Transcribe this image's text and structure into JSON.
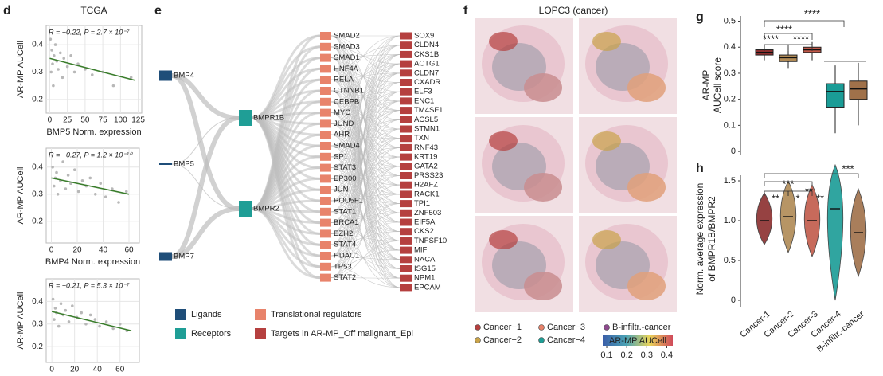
{
  "chart_data": [
    {
      "type": "scatter",
      "panel": "d",
      "title": "TCGA",
      "annotation": "R = −0.22, P = 2.7 × 10⁻⁷",
      "xlabel": "BMP5 Norm. expression",
      "ylabel": "AR-MP AUCell",
      "xlim": [
        -5,
        130
      ],
      "ylim": [
        0.15,
        0.47
      ],
      "xticks": [
        0,
        25,
        50,
        75,
        100,
        125
      ],
      "yticks": [
        0.2,
        0.3,
        0.4
      ],
      "grid": true,
      "color": "#b8b8b8",
      "fit_color": "#3a7d2c",
      "points": {
        "x": [
          1,
          2,
          3,
          4,
          5,
          6,
          8,
          10,
          12,
          15,
          18,
          20,
          25,
          30,
          35,
          40,
          50,
          60,
          75,
          90,
          115
        ],
        "y": [
          0.42,
          0.3,
          0.38,
          0.33,
          0.25,
          0.36,
          0.4,
          0.34,
          0.31,
          0.37,
          0.28,
          0.35,
          0.32,
          0.36,
          0.3,
          0.33,
          0.31,
          0.29,
          0.3,
          0.25,
          0.28
        ]
      },
      "fit": {
        "x": [
          0,
          120
        ],
        "y": [
          0.35,
          0.27
        ]
      }
    },
    {
      "type": "scatter",
      "annotation": "R = −0.27, P = 1.2 × 10⁻¹⁰",
      "xlabel": "BMP4 Norm. expression",
      "ylabel": "AR-MP AUCell",
      "xlim": [
        -4,
        68
      ],
      "ylim": [
        0.12,
        0.47
      ],
      "xticks": [
        0,
        20,
        40,
        60
      ],
      "yticks": [
        0.2,
        0.3,
        0.4
      ],
      "grid": true,
      "color": "#b8b8b8",
      "fit_color": "#3a7d2c",
      "points": {
        "x": [
          1,
          2,
          3,
          4,
          5,
          7,
          9,
          11,
          13,
          15,
          18,
          21,
          24,
          27,
          30,
          34,
          38,
          42,
          47,
          52,
          58
        ],
        "y": [
          0.4,
          0.33,
          0.36,
          0.38,
          0.3,
          0.35,
          0.42,
          0.32,
          0.37,
          0.34,
          0.39,
          0.31,
          0.35,
          0.33,
          0.36,
          0.3,
          0.34,
          0.29,
          0.32,
          0.27,
          0.31
        ]
      },
      "fit": {
        "x": [
          0,
          60
        ],
        "y": [
          0.36,
          0.3
        ]
      }
    },
    {
      "type": "scatter",
      "annotation": "R = −0.21, P = 5.3 × 10⁻⁷",
      "ylabel": "AR-MP AUCell",
      "xlim": [
        -5,
        77
      ],
      "ylim": [
        0.13,
        0.5
      ],
      "xticks": [
        0,
        20,
        40,
        60
      ],
      "yticks": [
        0.2,
        0.3,
        0.4
      ],
      "grid": true,
      "color": "#b8b8b8",
      "fit_color": "#3a7d2c",
      "points": {
        "x": [
          1,
          2,
          3,
          4,
          6,
          8,
          10,
          12,
          15,
          18,
          22,
          26,
          30,
          34,
          38,
          42,
          48,
          54,
          60,
          66
        ],
        "y": [
          0.41,
          0.32,
          0.37,
          0.35,
          0.29,
          0.39,
          0.34,
          0.36,
          0.31,
          0.38,
          0.33,
          0.35,
          0.3,
          0.34,
          0.32,
          0.29,
          0.31,
          0.28,
          0.3,
          0.27
        ]
      },
      "fit": {
        "x": [
          0,
          70
        ],
        "y": [
          0.355,
          0.27
        ]
      }
    },
    {
      "type": "sankey",
      "panel": "e",
      "groups": [
        {
          "name": "Ligands",
          "color": "#1f4e79",
          "nodes": [
            "BMP4",
            "BMP5",
            "BMP7"
          ]
        },
        {
          "name": "Receptors",
          "color": "#1f9e96",
          "nodes": [
            "BMPR1B",
            "BMPR2"
          ]
        },
        {
          "name": "Translational regulators",
          "color": "#e8836b",
          "nodes": [
            "SMAD2",
            "SMAD3",
            "SMAD1",
            "HNF4A",
            "RELA",
            "CTNNB1",
            "CEBPB",
            "MYC",
            "JUND",
            "AHR",
            "SMAD4",
            "SP1",
            "STAT3",
            "EP300",
            "JUN",
            "POU5F1",
            "STAT1",
            "BRCA1",
            "EZH2",
            "STAT4",
            "HDAC1",
            "TP53",
            "STAT2"
          ]
        },
        {
          "name": "Targets in AR-MP_Off malignant_Epi",
          "color": "#b5403f",
          "nodes": [
            "SOX9",
            "CLDN4",
            "CKS1B",
            "ACTG1",
            "CLDN7",
            "CXADR",
            "ELF3",
            "ENC1",
            "TM4SF1",
            "ACSL5",
            "STMN1",
            "TXN",
            "RNF43",
            "KRT19",
            "GATA2",
            "PRSS23",
            "H2AFZ",
            "RACK1",
            "TPI1",
            "ZNF503",
            "EIF5A",
            "CKS2",
            "TNFSF10",
            "MIF",
            "NACA",
            "ISG15",
            "NPM1",
            "EPCAM"
          ]
        }
      ]
    },
    {
      "type": "spatial",
      "panel": "f",
      "title": "LOPC3 (cancer)",
      "legend": [
        {
          "name": "Cancer−1",
          "color": "#b5403f"
        },
        {
          "name": "Cancer−3",
          "color": "#e8836b"
        },
        {
          "name": "B-infiltr.-cancer",
          "color": "#8e4a8e"
        },
        {
          "name": "Cancer−2",
          "color": "#c9a34a"
        },
        {
          "name": "Cancer−4",
          "color": "#1f9e96"
        }
      ],
      "colorbar": {
        "label": "AR-MP AUCell",
        "xlim": [
          0.08,
          0.43
        ],
        "xticks": [
          0.1,
          0.2,
          0.3,
          0.4
        ],
        "colors": [
          "#3b5ea8",
          "#4aa3b5",
          "#e8d35a",
          "#d04a5a"
        ]
      }
    },
    {
      "type": "box",
      "panel": "g",
      "ylabel": [
        "AR-MP",
        "AUCell score"
      ],
      "ylim": [
        -0.015,
        0.52
      ],
      "yticks": [
        0,
        0.1,
        0.2,
        0.3,
        0.4,
        0.5
      ],
      "boxes": [
        {
          "color": "#8b2e2e",
          "min": 0.35,
          "q1": 0.37,
          "median": 0.38,
          "q3": 0.39,
          "max": 0.41
        },
        {
          "color": "#b08a55",
          "min": 0.32,
          "q1": 0.345,
          "median": 0.36,
          "q3": 0.37,
          "max": 0.4
        },
        {
          "color": "#c25a4a",
          "min": 0.35,
          "q1": 0.38,
          "median": 0.39,
          "q3": 0.4,
          "max": 0.42
        },
        {
          "color": "#1a9c96",
          "min": 0.07,
          "q1": 0.17,
          "median": 0.23,
          "q3": 0.26,
          "max": 0.33
        },
        {
          "color": "#a0714a",
          "min": 0.1,
          "q1": 0.2,
          "median": 0.24,
          "q3": 0.27,
          "max": 0.34
        }
      ],
      "annotations": [
        "****",
        "****",
        "****",
        "****"
      ]
    },
    {
      "type": "violin",
      "panel": "h",
      "ylabel": [
        "Norm. average expression",
        "of BMPR1B/BMPR2"
      ],
      "ylim": [
        -0.08,
        1.57
      ],
      "yticks": [
        0,
        0.5,
        {
          "value": 1,
          "label": "1.0"
        },
        1.5
      ],
      "categories": [
        "Cancer-1",
        "Cancer-2",
        "Cancer-3",
        "Cancer-4",
        "B-infiltr.-cancer"
      ],
      "colors": [
        "#8b2e2e",
        "#b08a55",
        "#c25a4a",
        "#1a9c96",
        "#a0714a"
      ],
      "min": [
        0.7,
        0.6,
        0.55,
        0,
        0.3
      ],
      "median": [
        1,
        1.05,
        1,
        1.15,
        0.85
      ],
      "max": [
        1.35,
        1.5,
        1.45,
        1.7,
        1.4
      ],
      "annotations": [
        "***",
        "***",
        "**",
        "*",
        "**",
        "**"
      ]
    }
  ]
}
